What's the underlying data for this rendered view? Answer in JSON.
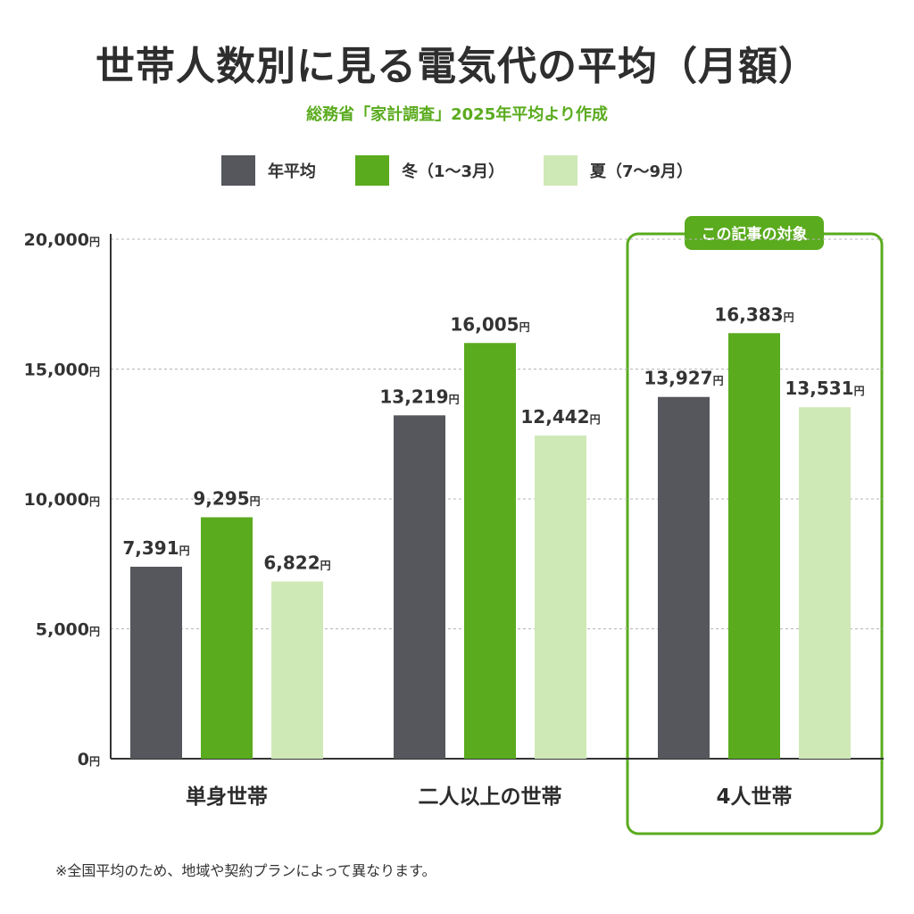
{
  "title": "世帯人数別に見る電気代の平均（月額）",
  "subtitle": "総務省「家計調査」2025年平均より作成",
  "highlight_label": "この記事の対象",
  "footnote": "※全国平均のため、地域や契約プランによって異なります。",
  "colors": {
    "annual": "#55575c",
    "winter": "#5aab1e",
    "summer": "#cfe9b6",
    "accent": "#5aab1e"
  },
  "chart_data": {
    "type": "bar",
    "categories": [
      "単身世帯",
      "二人以上の世帯",
      "4人世帯"
    ],
    "series": [
      {
        "name": "年平均",
        "values": [
          7391,
          13219,
          13927
        ],
        "labels": [
          "7,391",
          "13,219",
          "13,927"
        ]
      },
      {
        "name": "冬（1～3月）",
        "values": [
          9295,
          16005,
          16383
        ],
        "labels": [
          "9,295",
          "16,005",
          "16,383"
        ]
      },
      {
        "name": "夏（7～9月）",
        "values": [
          6822,
          12442,
          13531
        ],
        "labels": [
          "6,822",
          "12,442",
          "13,531"
        ]
      }
    ],
    "unit": "円",
    "ylim": [
      0,
      20000
    ],
    "yticks": [
      0,
      5000,
      10000,
      15000,
      20000
    ],
    "ytick_labels": [
      "0",
      "5,000",
      "10,000",
      "15,000",
      "20,000"
    ],
    "grid": true,
    "legend_position": "top-center",
    "highlight_category": "4人世帯"
  }
}
